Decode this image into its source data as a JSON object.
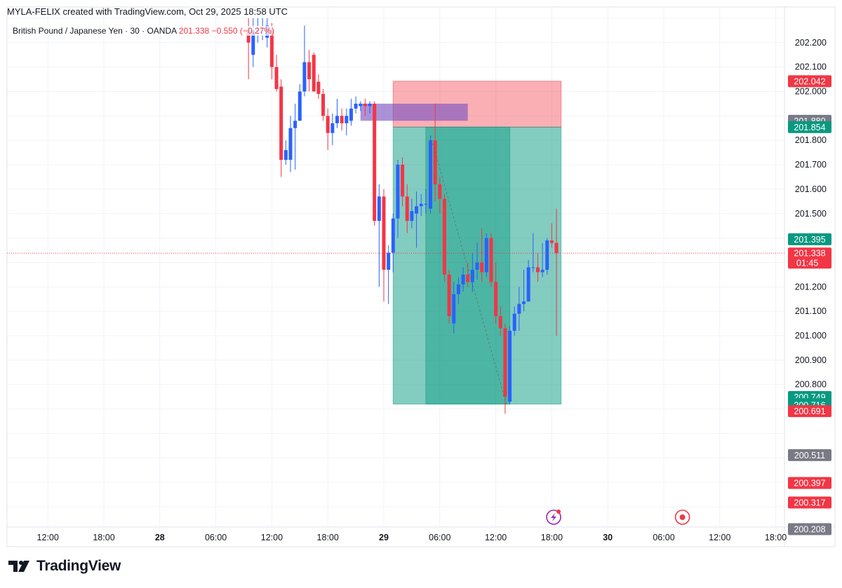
{
  "header": {
    "credit": "MYLA-FELIX created with TradingView.com, Oct 29, 2025 18:58 UTC"
  },
  "symbol": {
    "name": "British Pound / Japanese Yen · 30 · OANDA",
    "last": "201.338",
    "change": "−0.550 (−0.27%)"
  },
  "brand": {
    "name": "TradingView"
  },
  "colors": {
    "up": "#2962ff",
    "down": "#f23645",
    "profit_zone": "#089981",
    "loss_zone": "#f23645",
    "grid": "#f0f3fa",
    "axis_text": "#131722"
  },
  "chart_data": {
    "type": "candlestick",
    "symbol": "GBPJPY",
    "interval": "30",
    "y_axis": {
      "range": [
        200.16,
        202.3
      ],
      "ticks": [
        "202.200",
        "202.100",
        "202.000",
        "201.800",
        "201.700",
        "201.600",
        "201.500",
        "201.200",
        "201.100",
        "201.000",
        "200.900",
        "200.800"
      ]
    },
    "x_axis": {
      "ticks": [
        {
          "label": "12:00",
          "hour": -36,
          "bold": false
        },
        {
          "label": "18:00",
          "hour": -30,
          "bold": false
        },
        {
          "label": "28",
          "hour": -24,
          "bold": true
        },
        {
          "label": "06:00",
          "hour": -18,
          "bold": false
        },
        {
          "label": "12:00",
          "hour": -12,
          "bold": false
        },
        {
          "label": "18:00",
          "hour": -6,
          "bold": false
        },
        {
          "label": "29",
          "hour": 0,
          "bold": true
        },
        {
          "label": "06:00",
          "hour": 6,
          "bold": false
        },
        {
          "label": "12:00",
          "hour": 12,
          "bold": false
        },
        {
          "label": "18:00",
          "hour": 18,
          "bold": false
        },
        {
          "label": "30",
          "hour": 24,
          "bold": true
        },
        {
          "label": "06:00",
          "hour": 30,
          "bold": false
        },
        {
          "label": "12:00",
          "hour": 36,
          "bold": false
        },
        {
          "label": "18:00",
          "hour": 42,
          "bold": false
        }
      ]
    },
    "candles": [
      {
        "t": -14.5,
        "o": 202.25,
        "h": 202.3,
        "l": 202.05,
        "c": 202.2
      },
      {
        "t": -14.0,
        "o": 202.15,
        "h": 202.3,
        "l": 202.1,
        "c": 202.25
      },
      {
        "t": -13.5,
        "o": 202.25,
        "h": 202.3,
        "l": 202.2,
        "c": 202.25
      },
      {
        "t": -13.0,
        "o": 202.26,
        "h": 202.3,
        "l": 202.21,
        "c": 202.26
      },
      {
        "t": -12.5,
        "o": 202.22,
        "h": 202.3,
        "l": 202.18,
        "c": 202.27
      },
      {
        "t": -12.0,
        "o": 202.25,
        "h": 202.28,
        "l": 202.05,
        "c": 202.1
      },
      {
        "t": -11.5,
        "o": 202.1,
        "h": 202.15,
        "l": 202.0,
        "c": 202.01
      },
      {
        "t": -11.0,
        "o": 202.02,
        "h": 202.05,
        "l": 201.65,
        "c": 201.72
      },
      {
        "t": -10.5,
        "o": 201.72,
        "h": 201.8,
        "l": 201.7,
        "c": 201.76
      },
      {
        "t": -10.0,
        "o": 201.72,
        "h": 201.9,
        "l": 201.67,
        "c": 201.85
      },
      {
        "t": -9.5,
        "o": 201.85,
        "h": 201.95,
        "l": 201.68,
        "c": 201.88
      },
      {
        "t": -9.0,
        "o": 201.88,
        "h": 202.03,
        "l": 201.88,
        "c": 202.0
      },
      {
        "t": -8.5,
        "o": 202.0,
        "h": 202.27,
        "l": 201.98,
        "c": 202.12
      },
      {
        "t": -8.0,
        "o": 202.12,
        "h": 202.17,
        "l": 202.0,
        "c": 202.05
      },
      {
        "t": -7.5,
        "o": 202.15,
        "h": 202.16,
        "l": 202.0,
        "c": 202.0
      },
      {
        "t": -7.0,
        "o": 202.04,
        "h": 202.07,
        "l": 201.97,
        "c": 201.99
      },
      {
        "t": -6.5,
        "o": 201.99,
        "h": 202.01,
        "l": 201.88,
        "c": 201.9
      },
      {
        "t": -6.0,
        "o": 201.9,
        "h": 201.93,
        "l": 201.76,
        "c": 201.83
      },
      {
        "t": -5.5,
        "o": 201.83,
        "h": 201.91,
        "l": 201.78,
        "c": 201.87
      },
      {
        "t": -5.0,
        "o": 201.87,
        "h": 201.97,
        "l": 201.85,
        "c": 201.9
      },
      {
        "t": -4.5,
        "o": 201.9,
        "h": 201.93,
        "l": 201.84,
        "c": 201.87
      },
      {
        "t": -4.0,
        "o": 201.87,
        "h": 201.93,
        "l": 201.82,
        "c": 201.9
      },
      {
        "t": -3.5,
        "o": 201.88,
        "h": 201.97,
        "l": 201.86,
        "c": 201.93
      },
      {
        "t": -3.0,
        "o": 201.93,
        "h": 201.98,
        "l": 201.91,
        "c": 201.95
      },
      {
        "t": -2.5,
        "o": 201.94,
        "h": 201.96,
        "l": 201.92,
        "c": 201.95
      },
      {
        "t": -2.0,
        "o": 201.95,
        "h": 201.97,
        "l": 201.9,
        "c": 201.94
      },
      {
        "t": -1.5,
        "o": 201.94,
        "h": 201.96,
        "l": 201.91,
        "c": 201.95
      },
      {
        "t": -1.0,
        "o": 201.95,
        "h": 201.96,
        "l": 201.45,
        "c": 201.47
      },
      {
        "t": -0.5,
        "o": 201.47,
        "h": 201.62,
        "l": 201.2,
        "c": 201.57
      },
      {
        "t": 0.0,
        "o": 201.57,
        "h": 201.6,
        "l": 201.14,
        "c": 201.27
      },
      {
        "t": 0.5,
        "o": 201.27,
        "h": 201.37,
        "l": 201.13,
        "c": 201.34
      },
      {
        "t": 1.0,
        "o": 201.34,
        "h": 201.5,
        "l": 201.26,
        "c": 201.48
      },
      {
        "t": 1.5,
        "o": 201.48,
        "h": 201.72,
        "l": 201.4,
        "c": 201.7
      },
      {
        "t": 2.0,
        "o": 201.7,
        "h": 201.73,
        "l": 201.53,
        "c": 201.57
      },
      {
        "t": 2.5,
        "o": 201.57,
        "h": 201.62,
        "l": 201.42,
        "c": 201.47
      },
      {
        "t": 3.0,
        "o": 201.47,
        "h": 201.56,
        "l": 201.44,
        "c": 201.51
      },
      {
        "t": 3.5,
        "o": 201.5,
        "h": 201.59,
        "l": 201.36,
        "c": 201.53
      },
      {
        "t": 4.0,
        "o": 201.53,
        "h": 201.58,
        "l": 201.49,
        "c": 201.54
      },
      {
        "t": 4.5,
        "o": 201.54,
        "h": 201.6,
        "l": 201.5,
        "c": 201.54
      },
      {
        "t": 5.0,
        "o": 201.52,
        "h": 201.82,
        "l": 201.5,
        "c": 201.8
      },
      {
        "t": 5.5,
        "o": 201.8,
        "h": 201.95,
        "l": 201.55,
        "c": 201.62
      },
      {
        "t": 6.0,
        "o": 201.62,
        "h": 201.65,
        "l": 201.5,
        "c": 201.56
      },
      {
        "t": 6.5,
        "o": 201.56,
        "h": 201.58,
        "l": 201.22,
        "c": 201.25
      },
      {
        "t": 7.0,
        "o": 201.25,
        "h": 201.27,
        "l": 201.05,
        "c": 201.08
      },
      {
        "t": 7.5,
        "o": 201.05,
        "h": 201.22,
        "l": 201.01,
        "c": 201.17
      },
      {
        "t": 8.0,
        "o": 201.17,
        "h": 201.24,
        "l": 201.13,
        "c": 201.21
      },
      {
        "t": 8.5,
        "o": 201.21,
        "h": 201.28,
        "l": 201.18,
        "c": 201.25
      },
      {
        "t": 9.0,
        "o": 201.25,
        "h": 201.3,
        "l": 201.2,
        "c": 201.22
      },
      {
        "t": 9.5,
        "o": 201.22,
        "h": 201.34,
        "l": 201.18,
        "c": 201.27
      },
      {
        "t": 10.0,
        "o": 201.27,
        "h": 201.38,
        "l": 201.23,
        "c": 201.3
      },
      {
        "t": 10.5,
        "o": 201.3,
        "h": 201.44,
        "l": 201.22,
        "c": 201.26
      },
      {
        "t": 11.0,
        "o": 201.26,
        "h": 201.42,
        "l": 201.24,
        "c": 201.4
      },
      {
        "t": 11.5,
        "o": 201.4,
        "h": 201.42,
        "l": 201.2,
        "c": 201.22
      },
      {
        "t": 12.0,
        "o": 201.22,
        "h": 201.3,
        "l": 201.05,
        "c": 201.08
      },
      {
        "t": 12.5,
        "o": 201.08,
        "h": 201.12,
        "l": 201.0,
        "c": 201.03
      },
      {
        "t": 13.0,
        "o": 201.03,
        "h": 201.05,
        "l": 200.68,
        "c": 200.75
      },
      {
        "t": 13.5,
        "o": 200.73,
        "h": 201.04,
        "l": 200.72,
        "c": 201.02
      },
      {
        "t": 14.0,
        "o": 201.02,
        "h": 201.12,
        "l": 201.0,
        "c": 201.09
      },
      {
        "t": 14.5,
        "o": 201.09,
        "h": 201.2,
        "l": 201.02,
        "c": 201.13
      },
      {
        "t": 15.0,
        "o": 201.13,
        "h": 201.27,
        "l": 201.1,
        "c": 201.14
      },
      {
        "t": 15.5,
        "o": 201.14,
        "h": 201.31,
        "l": 201.14,
        "c": 201.28
      },
      {
        "t": 16.0,
        "o": 201.28,
        "h": 201.42,
        "l": 201.26,
        "c": 201.28
      },
      {
        "t": 16.5,
        "o": 201.28,
        "h": 201.34,
        "l": 201.22,
        "c": 201.26
      },
      {
        "t": 17.0,
        "o": 201.26,
        "h": 201.38,
        "l": 201.24,
        "c": 201.27
      },
      {
        "t": 17.5,
        "o": 201.27,
        "h": 201.4,
        "l": 201.25,
        "c": 201.39
      },
      {
        "t": 18.0,
        "o": 201.39,
        "h": 201.46,
        "l": 201.36,
        "c": 201.38
      },
      {
        "t": 18.5,
        "o": 201.38,
        "h": 201.52,
        "l": 201.0,
        "c": 201.338
      }
    ],
    "positions": [
      {
        "label": "main",
        "entry": 201.854,
        "stop": 202.042,
        "target": 200.72,
        "t_start": 1.0,
        "t_end": 19.0
      },
      {
        "label": "inner",
        "entry": 201.854,
        "target": 200.72,
        "t_start": 4.5,
        "t_end": 13.5
      }
    ],
    "supply_zone": {
      "top": 201.95,
      "bottom": 201.88,
      "t_start": -2.5,
      "t_end": 9.0
    },
    "trend_line": {
      "points": [
        {
          "t": 5.0,
          "p": 201.82
        },
        {
          "t": 13.2,
          "p": 200.71
        }
      ]
    },
    "current_price": {
      "value": "201.338",
      "countdown": "01:45"
    },
    "price_badges": [
      {
        "value": "202.042",
        "color": "#f23645"
      },
      {
        "value": "201.880",
        "color": "#787b86"
      },
      {
        "value": "201.854",
        "color": "#089981"
      },
      {
        "value": "201.395",
        "color": "#089981"
      },
      {
        "value": "200.749",
        "color": "#089981"
      },
      {
        "value": "200.720",
        "color": "#089981"
      },
      {
        "value": "200.716",
        "color": "#089981"
      },
      {
        "value": "200.691",
        "color": "#f23645"
      },
      {
        "value": "200.511",
        "color": "#787b86"
      },
      {
        "value": "200.397",
        "color": "#f23645"
      },
      {
        "value": "200.317",
        "color": "#f23645"
      },
      {
        "value": "200.208",
        "color": "#787b86"
      }
    ],
    "event_icons": [
      {
        "name": "lightning-event-icon",
        "hour": 18.2,
        "color": "#9c27b0"
      },
      {
        "name": "economic-event-icon",
        "hour": 32.0,
        "color": "#f23645"
      }
    ]
  }
}
